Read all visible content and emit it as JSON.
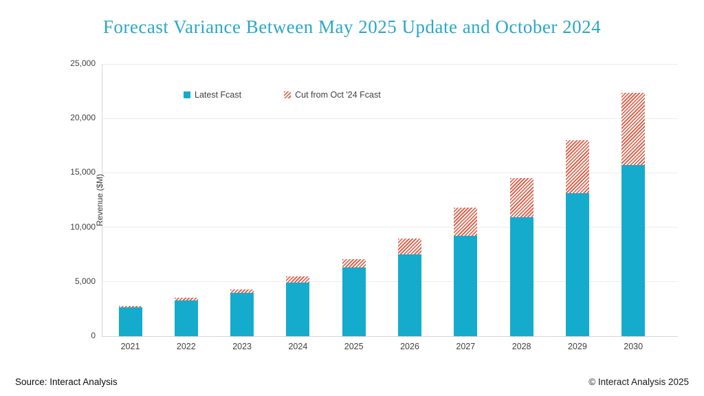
{
  "title": "Forecast Variance Between May 2025 Update and October 2024",
  "footer": {
    "source": "Source: Interact Analysis",
    "copyright": "© Interact Analysis 2025"
  },
  "colors": {
    "title": "#2BA7C7",
    "latest_bar": "#15ABCD",
    "cut_stripe": "#DB5A45",
    "cut_background": "#FBF1EE",
    "text": "#404040",
    "grid": "#ECECEC",
    "axis": "#D6D6D6"
  },
  "chart_data": {
    "type": "bar",
    "stacked": true,
    "title": "Forecast Variance Between May 2025 Update and October 2024",
    "xlabel": "",
    "ylabel": "Revenue ($M)",
    "ylim": [
      0,
      25000
    ],
    "ytick_step": 5000,
    "ytick_labels": [
      "0",
      "5,000",
      "10,000",
      "15,000",
      "20,000",
      "25,000"
    ],
    "grid": true,
    "legend_position": "top-inside",
    "categories": [
      "2021",
      "2022",
      "2023",
      "2024",
      "2025",
      "2026",
      "2027",
      "2028",
      "2029",
      "2030"
    ],
    "series": [
      {
        "name": "Latest Fcast",
        "style": "solid-teal",
        "values": [
          2650,
          3300,
          3950,
          4950,
          6300,
          7500,
          9200,
          10950,
          13150,
          15700
        ]
      },
      {
        "name": "Cut from Oct '24 Fcast",
        "style": "hatched-red",
        "values": [
          150,
          250,
          320,
          550,
          800,
          1450,
          2600,
          3600,
          4850,
          6650
        ]
      }
    ],
    "stack_totals": [
      2800,
      3550,
      4270,
      5500,
      7100,
      8950,
      11800,
      14550,
      18000,
      22350
    ]
  }
}
